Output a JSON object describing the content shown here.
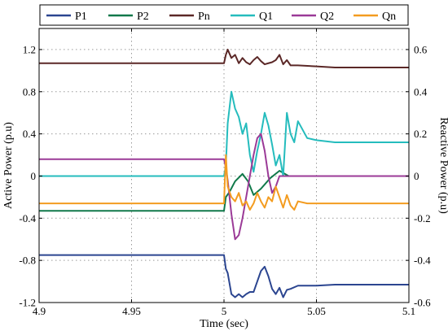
{
  "chart_data": {
    "type": "line",
    "xlabel": "Time (sec)",
    "ylabel_left": "Active Power (p.u)",
    "ylabel_right": "Reactive Power (p.u)",
    "xlim": [
      4.9,
      5.1
    ],
    "ylim_left": [
      -1.2,
      1.4
    ],
    "ylim_right": [
      -0.6,
      0.7
    ],
    "x_ticks": [
      4.9,
      4.95,
      5,
      5.05,
      5.1
    ],
    "x_tick_labels": [
      "4.9",
      "4.95",
      "5",
      "5.05",
      "5.1"
    ],
    "y_left_ticks": [
      -1.2,
      -0.8,
      -0.4,
      0,
      0.4,
      0.8,
      1.2
    ],
    "y_left_tick_labels": [
      "-1.2",
      "-0.8",
      "-0.4",
      "0",
      "0.4",
      "0.8",
      "1.2"
    ],
    "y_right_ticks": [
      -0.6,
      -0.4,
      -0.2,
      0,
      0.2,
      0.4,
      0.6
    ],
    "y_right_tick_labels": [
      "-0.6",
      "-0.4",
      "-0.2",
      "0",
      "0.2",
      "0.4",
      "0.6"
    ],
    "grid": true,
    "legend_position": "top",
    "series": [
      {
        "name": "P1",
        "axis": "left",
        "color": "#2b4590",
        "x": [
          4.9,
          5.0,
          5.001,
          5.002,
          5.004,
          5.006,
          5.008,
          5.01,
          5.012,
          5.014,
          5.016,
          5.018,
          5.02,
          5.022,
          5.024,
          5.026,
          5.028,
          5.03,
          5.032,
          5.034,
          5.036,
          5.04,
          5.05,
          5.06,
          5.1
        ],
        "y": [
          -0.75,
          -0.75,
          -0.88,
          -0.92,
          -1.12,
          -1.15,
          -1.12,
          -1.15,
          -1.12,
          -1.1,
          -1.1,
          -1.0,
          -0.9,
          -0.86,
          -0.95,
          -1.07,
          -1.12,
          -1.06,
          -1.15,
          -1.08,
          -1.07,
          -1.04,
          -1.04,
          -1.03,
          -1.03
        ]
      },
      {
        "name": "P2",
        "axis": "left",
        "color": "#10794a",
        "x": [
          4.9,
          5.0,
          5.001,
          5.003,
          5.006,
          5.01,
          5.013,
          5.016,
          5.02,
          5.025,
          5.03,
          5.035,
          5.04,
          5.05,
          5.1
        ],
        "y": [
          -0.33,
          -0.33,
          -0.2,
          -0.15,
          -0.05,
          0.02,
          -0.05,
          -0.18,
          -0.12,
          -0.02,
          0.05,
          0.0,
          0.0,
          0.0,
          0.0
        ]
      },
      {
        "name": "Pn",
        "axis": "left",
        "color": "#5b2827",
        "x": [
          4.9,
          5.0,
          5.001,
          5.002,
          5.004,
          5.006,
          5.008,
          5.01,
          5.012,
          5.014,
          5.016,
          5.018,
          5.02,
          5.022,
          5.024,
          5.026,
          5.028,
          5.03,
          5.032,
          5.034,
          5.036,
          5.04,
          5.05,
          5.06,
          5.1
        ],
        "y": [
          1.07,
          1.07,
          1.15,
          1.2,
          1.12,
          1.15,
          1.07,
          1.12,
          1.08,
          1.06,
          1.1,
          1.13,
          1.09,
          1.06,
          1.07,
          1.08,
          1.1,
          1.15,
          1.06,
          1.1,
          1.05,
          1.05,
          1.04,
          1.03,
          1.03
        ]
      },
      {
        "name": "Q1",
        "axis": "right",
        "color": "#25bcbd",
        "x": [
          4.9,
          5.0,
          5.001,
          5.002,
          5.004,
          5.006,
          5.008,
          5.01,
          5.012,
          5.014,
          5.016,
          5.018,
          5.02,
          5.022,
          5.024,
          5.026,
          5.028,
          5.03,
          5.032,
          5.034,
          5.036,
          5.038,
          5.04,
          5.045,
          5.05,
          5.06,
          5.1
        ],
        "y": [
          0.0,
          0.0,
          0.05,
          0.25,
          0.4,
          0.32,
          0.28,
          0.2,
          0.25,
          0.1,
          0.02,
          0.12,
          0.2,
          0.3,
          0.24,
          0.15,
          0.05,
          0.1,
          0.0,
          0.3,
          0.2,
          0.16,
          0.26,
          0.18,
          0.17,
          0.16,
          0.16
        ]
      },
      {
        "name": "Q2",
        "axis": "right",
        "color": "#9b3a97",
        "x": [
          4.9,
          5.0,
          5.001,
          5.002,
          5.004,
          5.006,
          5.008,
          5.01,
          5.012,
          5.014,
          5.016,
          5.018,
          5.02,
          5.022,
          5.024,
          5.026,
          5.028,
          5.03,
          5.035,
          5.04,
          5.1
        ],
        "y": [
          0.08,
          0.08,
          0.04,
          -0.02,
          -0.18,
          -0.3,
          -0.28,
          -0.2,
          -0.1,
          0.0,
          0.1,
          0.18,
          0.2,
          0.12,
          0.0,
          -0.08,
          -0.05,
          0.0,
          0.0,
          0.0,
          0.0
        ]
      },
      {
        "name": "Qn",
        "axis": "right",
        "color": "#f39c20",
        "x": [
          4.9,
          5.0,
          5.001,
          5.002,
          5.004,
          5.006,
          5.008,
          5.01,
          5.012,
          5.014,
          5.016,
          5.018,
          5.02,
          5.022,
          5.024,
          5.026,
          5.028,
          5.03,
          5.032,
          5.034,
          5.036,
          5.038,
          5.04,
          5.045,
          5.05,
          5.1
        ],
        "y": [
          -0.13,
          -0.13,
          0.1,
          -0.05,
          -0.1,
          -0.12,
          -0.08,
          -0.14,
          -0.12,
          -0.16,
          -0.13,
          -0.08,
          -0.12,
          -0.15,
          -0.1,
          -0.12,
          -0.05,
          -0.1,
          -0.15,
          -0.09,
          -0.14,
          -0.16,
          -0.12,
          -0.13,
          -0.13,
          -0.13
        ]
      }
    ]
  }
}
